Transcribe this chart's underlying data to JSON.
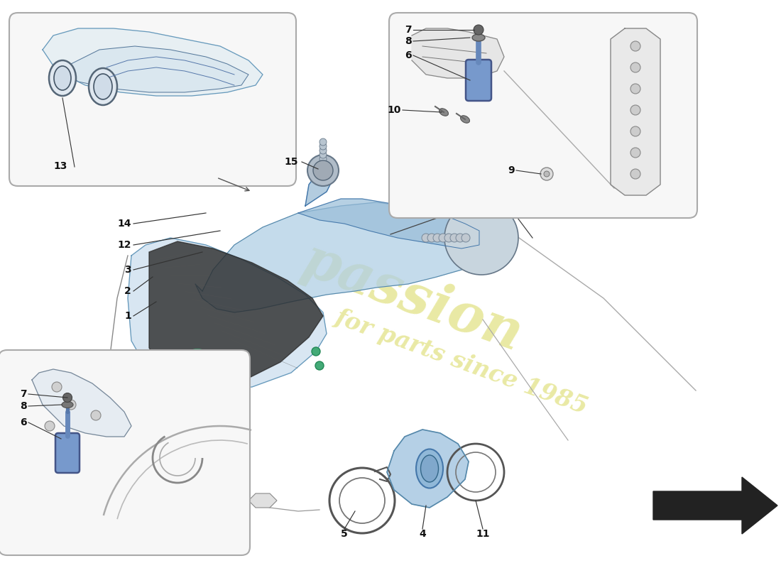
{
  "bg_color": "#ffffff",
  "watermark_color": "#d4d44a",
  "watermark_alpha": 0.5,
  "part_color_blue": "#a8c8e0",
  "part_color_blue2": "#c0d8ee",
  "part_color_dark": "#383838",
  "line_color": "#333333",
  "label_color": "#111111",
  "inset_bg": "#f8f8f8",
  "inset_border": "#999999",
  "figsize": [
    11.0,
    8.0
  ],
  "dpi": 100,
  "main_intake_upper": {
    "x": [
      3.2,
      3.5,
      4.0,
      4.6,
      5.2,
      5.7,
      6.1,
      6.5,
      6.8,
      7.0,
      7.1,
      7.0,
      6.7,
      6.3,
      5.9,
      5.4,
      5.0,
      4.5,
      4.0,
      3.6,
      3.2,
      3.2
    ],
    "y": [
      5.3,
      5.5,
      5.6,
      5.5,
      5.2,
      5.0,
      4.9,
      4.85,
      4.8,
      4.7,
      4.5,
      4.3,
      4.2,
      4.3,
      4.4,
      4.5,
      4.6,
      4.75,
      4.9,
      5.1,
      5.3,
      5.3
    ]
  },
  "main_intake_funnel": {
    "x": [
      3.2,
      3.5,
      4.0,
      4.5,
      5.0,
      5.5,
      6.0,
      6.5,
      6.8,
      7.0,
      6.8,
      6.3,
      5.5,
      4.8,
      4.2,
      3.8,
      3.5,
      3.2,
      2.9,
      2.8,
      2.9,
      3.0,
      3.2
    ],
    "y": [
      5.3,
      5.5,
      5.6,
      5.55,
      5.4,
      5.2,
      5.0,
      4.85,
      4.7,
      4.5,
      4.2,
      4.0,
      3.8,
      3.6,
      3.5,
      3.5,
      3.6,
      3.7,
      4.0,
      4.3,
      4.8,
      5.1,
      5.3
    ]
  },
  "airbox_lower": {
    "x": [
      2.0,
      2.2,
      2.5,
      3.0,
      3.5,
      4.0,
      4.4,
      4.6,
      4.5,
      4.2,
      3.8,
      3.2,
      2.6,
      2.2,
      2.0,
      1.9,
      2.0
    ],
    "y": [
      4.5,
      4.6,
      4.5,
      4.3,
      4.0,
      3.7,
      3.5,
      3.3,
      3.0,
      2.8,
      2.6,
      2.5,
      2.6,
      2.8,
      3.2,
      3.8,
      4.5
    ]
  },
  "filter_poly": {
    "x": [
      2.2,
      2.5,
      3.0,
      3.5,
      4.0,
      4.4,
      4.5,
      4.2,
      3.7,
      3.1,
      2.5,
      2.2
    ],
    "y": [
      4.5,
      4.5,
      4.3,
      4.0,
      3.7,
      3.5,
      3.2,
      3.0,
      2.8,
      2.7,
      2.9,
      3.3
    ]
  },
  "pipe_upper_x": [
    4.3,
    4.5,
    4.7,
    4.6,
    4.5,
    4.3
  ],
  "pipe_upper_y": [
    5.65,
    5.8,
    5.65,
    5.5,
    5.5,
    5.65
  ],
  "arrow_nav": {
    "x": [
      9.2,
      10.5,
      10.5,
      11.0,
      10.5,
      10.5,
      9.2,
      9.2
    ],
    "y": [
      0.65,
      0.65,
      0.45,
      0.85,
      1.25,
      1.05,
      1.05,
      0.65
    ]
  }
}
